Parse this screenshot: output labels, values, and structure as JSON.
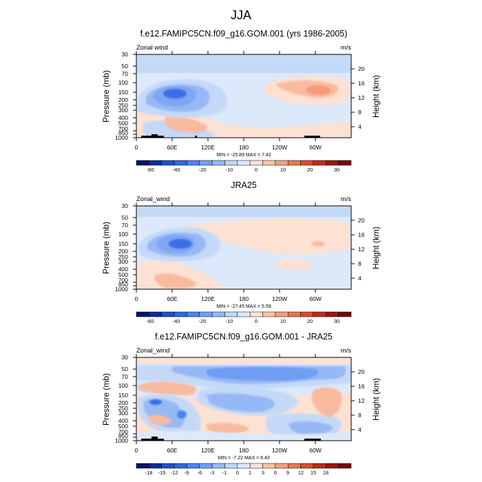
{
  "figure_title": "JJA",
  "chart_data": [
    {
      "type": "contour",
      "title": "f.e12.FAMIPC5CN.f09_g16.GOM.001 (yrs 1986-2005)",
      "left_label": "Zonal wind",
      "units": "m/s",
      "ylabel": "Pressure (mb)",
      "ylabel_right": "Height (km)",
      "x_ticks": [
        "0",
        "60E",
        "120E",
        "180",
        "120W",
        "60W"
      ],
      "y_ticks": [
        "30",
        "50",
        "70",
        "100",
        "150",
        "200",
        "250",
        "300",
        "400",
        "500",
        "700",
        "850",
        "1000"
      ],
      "y_ticks_right": [
        "20",
        "16",
        "12",
        "8",
        "4"
      ],
      "min_max_text": "MIN = -25.89  MAX =   7.42",
      "colorbar_labels": [
        "-60",
        "-40",
        "-20",
        "-10",
        "0",
        "10",
        "20",
        "30"
      ],
      "colorbar_colors": [
        "#05146e",
        "#0d2c9c",
        "#1f4fd1",
        "#2f67e8",
        "#4a84f2",
        "#6f9ef5",
        "#97b8f6",
        "#c0d6f9",
        "#dbe8fb",
        "#fde3d5",
        "#f9c4a8",
        "#f2a07b",
        "#ea7750",
        "#dd4b2a",
        "#c6271a",
        "#a01410",
        "#700806"
      ],
      "min": -25.89,
      "max": 7.42
    },
    {
      "type": "contour",
      "title": "JRA25",
      "left_label": "Zonal_wind",
      "units": "m/s",
      "ylabel": "Pressure (mb)",
      "ylabel_right": "Height (km)",
      "x_ticks": [
        "0",
        "60E",
        "120E",
        "180",
        "120W",
        "60W"
      ],
      "y_ticks": [
        "30",
        "50",
        "70",
        "100",
        "150",
        "200",
        "250",
        "300",
        "400",
        "500",
        "700",
        "850",
        "1000"
      ],
      "y_ticks_right": [
        "20",
        "16",
        "12",
        "8",
        "4"
      ],
      "min_max_text": "MIN = -27.45  MAX =   5.59",
      "colorbar_labels": [
        "-60",
        "-40",
        "-20",
        "-10",
        "0",
        "10",
        "20",
        "30"
      ],
      "colorbar_colors": [
        "#05146e",
        "#0d2c9c",
        "#1f4fd1",
        "#2f67e8",
        "#4a84f2",
        "#6f9ef5",
        "#97b8f6",
        "#c0d6f9",
        "#dbe8fb",
        "#fde3d5",
        "#f9c4a8",
        "#f2a07b",
        "#ea7750",
        "#dd4b2a",
        "#c6271a",
        "#a01410",
        "#700806"
      ],
      "min": -27.45,
      "max": 5.59
    },
    {
      "type": "contour",
      "title": "f.e12.FAMIPC5CN.f09_g16.GOM.001 - JRA25",
      "left_label": "Zonal_wind",
      "units": "m/s",
      "ylabel": "Pressure (mb)",
      "ylabel_right": "Height (km)",
      "x_ticks": [
        "0",
        "60E",
        "120E",
        "180",
        "120W",
        "60W"
      ],
      "y_ticks": [
        "30",
        "50",
        "70",
        "100",
        "150",
        "200",
        "250",
        "300",
        "400",
        "500",
        "700",
        "850",
        "1000"
      ],
      "y_ticks_right": [
        "20",
        "16",
        "12",
        "8",
        "4"
      ],
      "min_max_text": "MIN =  -7.22  MAX =   6.43",
      "colorbar_labels": [
        "-18",
        "-15",
        "-12",
        "-9",
        "-6",
        "-3",
        "-1",
        "0",
        "1",
        "3",
        "6",
        "9",
        "12",
        "15",
        "18"
      ],
      "colorbar_colors": [
        "#05146e",
        "#0d2c9c",
        "#1f4fd1",
        "#2f67e8",
        "#4a84f2",
        "#6f9ef5",
        "#97b8f6",
        "#c0d6f9",
        "#dbe8fb",
        "#fde3d5",
        "#f9c4a8",
        "#f2a07b",
        "#ea7750",
        "#dd4b2a",
        "#c6271a",
        "#a01410",
        "#700806"
      ],
      "min": -7.22,
      "max": 6.43
    }
  ],
  "colors": {
    "strong_negative": "#3a6de6",
    "medium_negative": "#7ea6f2",
    "weak_negative": "#c4d9f8",
    "faint_negative": "#dce9fb",
    "weak_positive": "#fde1d2",
    "medium_positive": "#f8bba0",
    "strong_positive": "#f39b7a",
    "topography": "#000000"
  }
}
